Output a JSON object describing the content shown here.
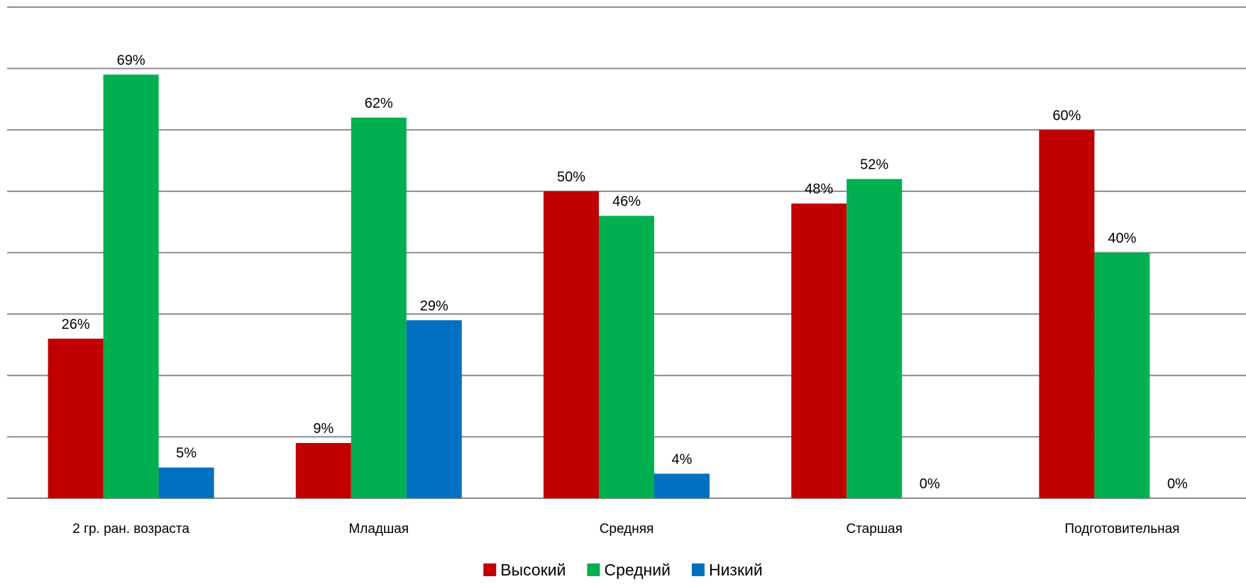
{
  "chart_data": {
    "type": "bar",
    "categories": [
      "2 гр. ран. возраста",
      "Младшая",
      "Средняя",
      "Старшая",
      "Подготовительная"
    ],
    "series": [
      {
        "name": "Высокий",
        "color": "#C00000",
        "values": [
          26,
          9,
          50,
          48,
          60
        ],
        "labels": [
          "26%",
          "9%",
          "50%",
          "48%",
          "60%"
        ]
      },
      {
        "name": "Средний",
        "color": "#00B050",
        "values": [
          69,
          62,
          46,
          52,
          40
        ],
        "labels": [
          "69%",
          "62%",
          "46%",
          "52%",
          "40%"
        ]
      },
      {
        "name": "Низкий",
        "color": "#0070C0",
        "values": [
          5,
          29,
          4,
          0,
          0
        ],
        "labels": [
          "5%",
          "29%",
          "4%",
          "0%",
          "0%"
        ]
      }
    ],
    "ylim": [
      0,
      80
    ],
    "grid": true,
    "legend": "bottom",
    "title": "",
    "xlabel": "",
    "ylabel": ""
  }
}
